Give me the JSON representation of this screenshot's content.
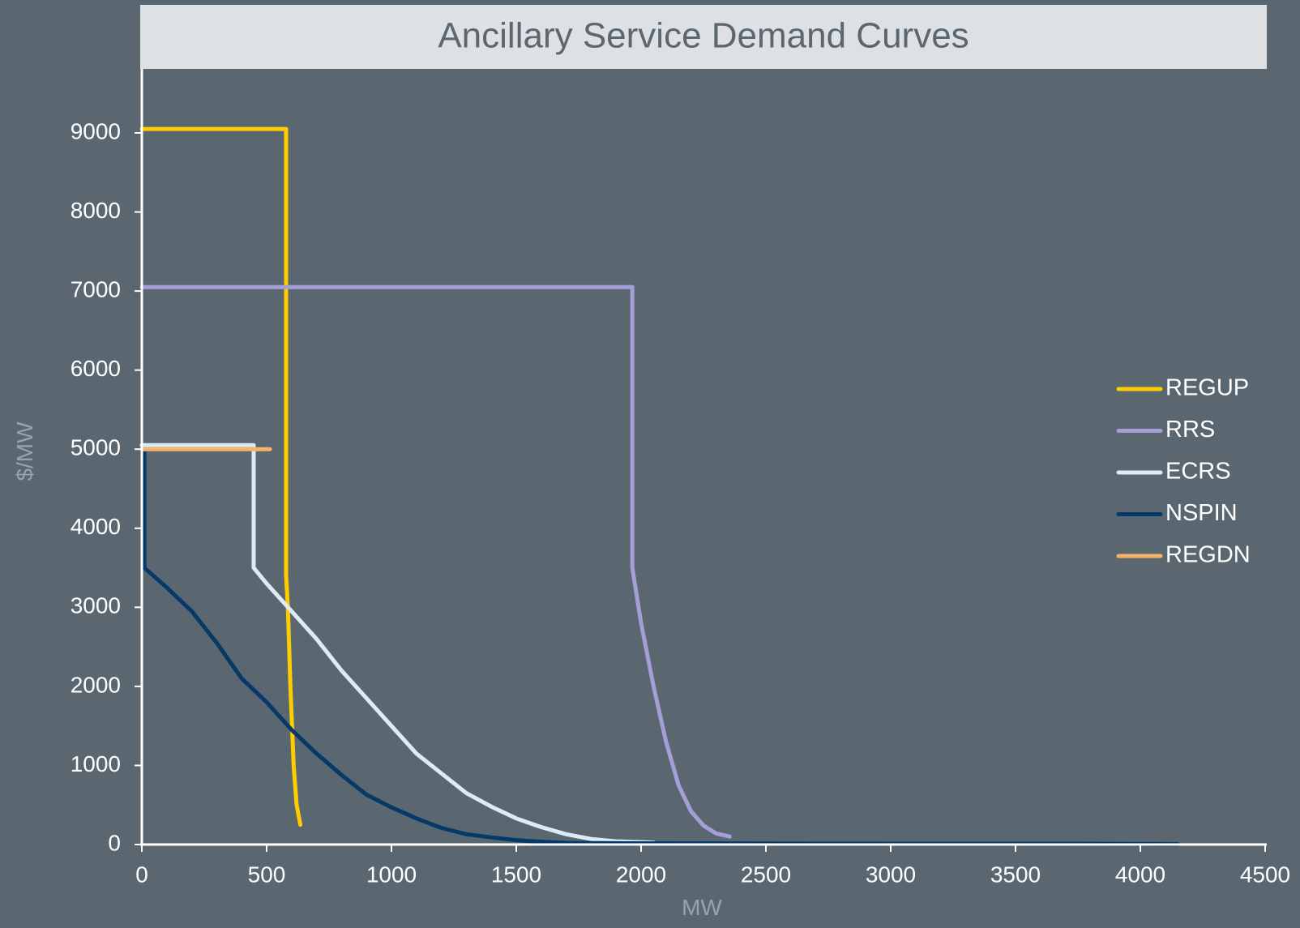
{
  "colors": {
    "background": "#5b6770",
    "title_bar": "#dde1e4",
    "title_text": "#5b6770",
    "axis": "#ffffff",
    "tick_text": "#ffffff",
    "axis_label_text": "#98a3aa",
    "legend_text": "#ffffff"
  },
  "chart_data": {
    "type": "line",
    "title": "Ancillary Service Demand Curves",
    "xlabel": "MW",
    "ylabel": "$/MW",
    "xlim": [
      0,
      4500
    ],
    "ylim": [
      0,
      9000
    ],
    "xticks": [
      0,
      500,
      1000,
      1500,
      2000,
      2500,
      3000,
      3500,
      4000,
      4500
    ],
    "yticks": [
      0,
      1000,
      2000,
      3000,
      4000,
      5000,
      6000,
      7000,
      8000,
      9000
    ],
    "grid": false,
    "legend_position": "right",
    "series": [
      {
        "name": "REGUP",
        "color": "#ffcc00",
        "points": [
          [
            0,
            9050
          ],
          [
            578,
            9050
          ],
          [
            578,
            3400
          ],
          [
            585,
            3000
          ],
          [
            595,
            2000
          ],
          [
            608,
            1000
          ],
          [
            620,
            500
          ],
          [
            635,
            250
          ]
        ]
      },
      {
        "name": "RRS",
        "color": "#a59fd9",
        "points": [
          [
            0,
            7050
          ],
          [
            1965,
            7050
          ],
          [
            1965,
            3500
          ],
          [
            1975,
            3300
          ],
          [
            2000,
            2800
          ],
          [
            2050,
            2000
          ],
          [
            2100,
            1300
          ],
          [
            2150,
            750
          ],
          [
            2200,
            420
          ],
          [
            2250,
            240
          ],
          [
            2300,
            140
          ],
          [
            2355,
            100
          ]
        ]
      },
      {
        "name": "ECRS",
        "color": "#dcecf7",
        "points": [
          [
            0,
            5050
          ],
          [
            448,
            5050
          ],
          [
            448,
            3500
          ],
          [
            500,
            3300
          ],
          [
            600,
            2950
          ],
          [
            700,
            2600
          ],
          [
            800,
            2200
          ],
          [
            900,
            1850
          ],
          [
            1000,
            1500
          ],
          [
            1100,
            1150
          ],
          [
            1200,
            900
          ],
          [
            1300,
            650
          ],
          [
            1400,
            480
          ],
          [
            1500,
            330
          ],
          [
            1600,
            220
          ],
          [
            1700,
            130
          ],
          [
            1800,
            70
          ],
          [
            1900,
            40
          ],
          [
            2000,
            30
          ],
          [
            2050,
            25
          ]
        ]
      },
      {
        "name": "NSPIN",
        "color": "#053a68",
        "points": [
          [
            10,
            5000
          ],
          [
            10,
            3500
          ],
          [
            100,
            3250
          ],
          [
            200,
            2950
          ],
          [
            300,
            2550
          ],
          [
            400,
            2100
          ],
          [
            500,
            1800
          ],
          [
            600,
            1450
          ],
          [
            700,
            1150
          ],
          [
            800,
            880
          ],
          [
            900,
            630
          ],
          [
            1000,
            470
          ],
          [
            1100,
            330
          ],
          [
            1200,
            210
          ],
          [
            1300,
            130
          ],
          [
            1400,
            90
          ],
          [
            1500,
            55
          ],
          [
            1600,
            35
          ],
          [
            1700,
            20
          ],
          [
            2000,
            15
          ],
          [
            3000,
            10
          ],
          [
            3700,
            10
          ],
          [
            4150,
            5
          ]
        ]
      },
      {
        "name": "REGDN",
        "color": "#f4b366",
        "points": [
          [
            0,
            5000
          ],
          [
            513,
            5000
          ]
        ]
      }
    ]
  }
}
